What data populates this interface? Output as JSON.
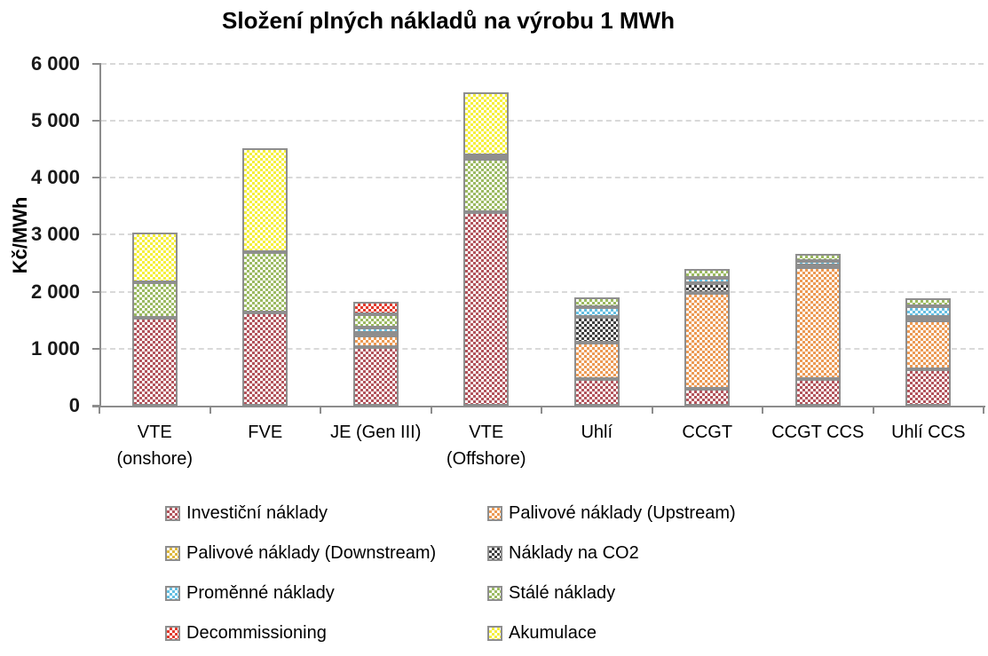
{
  "chart_data": {
    "type": "bar",
    "variant": "stacked-vertical",
    "title": "Složení plných nákladů na výrobu 1 MWh",
    "ylabel": "Kč/MWh",
    "ylim": [
      0,
      6000
    ],
    "ytick_step": 1000,
    "ytick_labels": [
      "0",
      "1 000",
      "2 000",
      "3 000",
      "4 000",
      "5 000",
      "6 000"
    ],
    "grid": "horizontal-dashed",
    "legend_position": "bottom-two-columns",
    "unit": "Kč/MWh",
    "categories": [
      {
        "line1": "VTE",
        "line2": "(onshore)"
      },
      {
        "line1": "FVE",
        "line2": ""
      },
      {
        "line1": "JE (Gen III)",
        "line2": ""
      },
      {
        "line1": "VTE",
        "line2": "(Offshore)"
      },
      {
        "line1": "Uhlí",
        "line2": ""
      },
      {
        "line1": "CCGT",
        "line2": ""
      },
      {
        "line1": "CCGT CCS",
        "line2": ""
      },
      {
        "line1": "Uhlí CCS",
        "line2": ""
      }
    ],
    "category_totals": [
      3030,
      4520,
      1820,
      5500,
      1900,
      2400,
      2660,
      1890
    ],
    "series": [
      {
        "name": "Investiční náklady",
        "color": "#b2545c",
        "values": [
          1540,
          1640,
          1030,
          3400,
          470,
          295,
          475,
          640
        ]
      },
      {
        "name": "Palivové náklady (Upstream)",
        "color": "#ec9a54",
        "values": [
          0,
          0,
          195,
          0,
          640,
          1680,
          1950,
          850
        ]
      },
      {
        "name": "Palivové náklady (Downstream)",
        "color": "#dfb93f",
        "values": [
          0,
          0,
          45,
          0,
          0,
          0,
          0,
          0
        ]
      },
      {
        "name": "Náklady na CO2",
        "color": "#3f3f3f",
        "values": [
          0,
          0,
          0,
          0,
          450,
          175,
          30,
          70
        ]
      },
      {
        "name": "Proměnné náklady",
        "color": "#64bfe2",
        "values": [
          0,
          0,
          95,
          0,
          170,
          100,
          85,
          180
        ]
      },
      {
        "name": "Stálé náklady",
        "color": "#9cba62",
        "values": [
          620,
          1050,
          240,
          930,
          170,
          150,
          120,
          150
        ]
      },
      {
        "name": "Decommissioning",
        "color": "#e23b2e",
        "values": [
          0,
          0,
          215,
          70,
          0,
          0,
          0,
          0
        ]
      },
      {
        "name": "Akumulace",
        "color": "#f5ef3d",
        "values": [
          880,
          1830,
          0,
          1100,
          0,
          0,
          0,
          0
        ]
      }
    ]
  },
  "style": {
    "axis_color": "#8c8c8c",
    "gridline_color": "#d9d9d9",
    "segment_border_color": "#8e8e8e",
    "pattern": "checkerboard"
  }
}
